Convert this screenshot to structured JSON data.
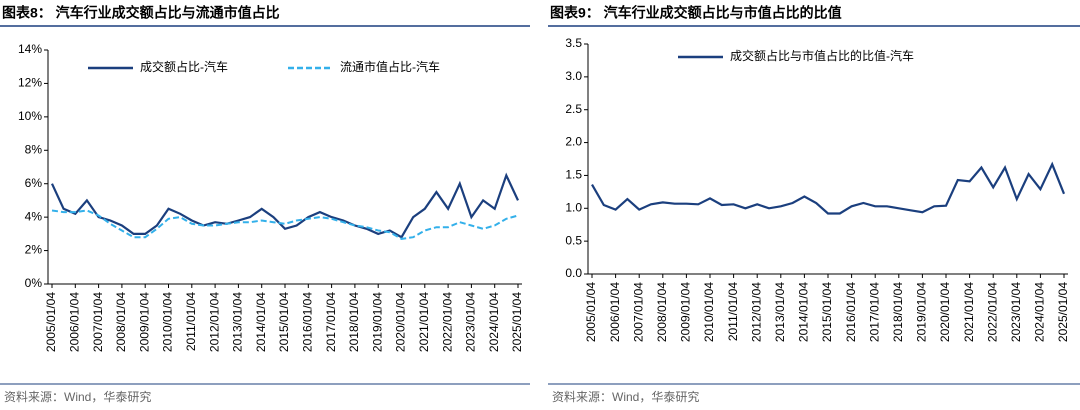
{
  "chart_data": [
    {
      "type": "line",
      "title": "图表8：  汽车行业成交额占比与流通市值占比",
      "source": "资料来源：Wind，华泰研究",
      "categories": [
        "2005/01/04",
        null,
        "2006/01/04",
        null,
        "2007/01/04",
        null,
        "2008/01/04",
        null,
        "2009/01/04",
        null,
        "2010/01/04",
        null,
        "2011/01/04",
        null,
        "2012/01/04",
        null,
        "2013/01/04",
        null,
        "2014/01/04",
        null,
        "2015/01/04",
        null,
        "2016/01/04",
        null,
        "2017/01/04",
        null,
        "2018/01/04",
        null,
        "2019/01/04",
        null,
        "2020/01/04",
        null,
        "2021/01/04",
        null,
        "2022/01/04",
        null,
        "2023/01/04",
        null,
        "2024/01/04",
        null,
        "2025/01/04"
      ],
      "series": [
        {
          "name": "成交额占比-汽车",
          "color": "#1b3f7e",
          "dashed": false,
          "values": [
            6.0,
            4.5,
            4.2,
            5.0,
            4.0,
            3.8,
            3.5,
            3.0,
            3.0,
            3.5,
            4.5,
            4.2,
            3.8,
            3.5,
            3.7,
            3.6,
            3.8,
            4.0,
            4.5,
            4.0,
            3.3,
            3.5,
            4.0,
            4.3,
            4.0,
            3.8,
            3.5,
            3.3,
            3.0,
            3.2,
            2.8,
            4.0,
            4.5,
            5.5,
            4.5,
            6.0,
            4.0,
            5.0,
            4.5,
            6.5,
            5.0
          ]
        },
        {
          "name": "流通市值占比-汽车",
          "color": "#33b0ea",
          "dashed": true,
          "values": [
            4.4,
            4.3,
            4.3,
            4.4,
            4.1,
            3.6,
            3.2,
            2.8,
            2.8,
            3.3,
            3.9,
            4.0,
            3.6,
            3.5,
            3.5,
            3.6,
            3.7,
            3.7,
            3.8,
            3.7,
            3.6,
            3.8,
            3.9,
            4.0,
            3.9,
            3.7,
            3.5,
            3.4,
            3.2,
            3.1,
            2.7,
            2.8,
            3.2,
            3.4,
            3.4,
            3.7,
            3.5,
            3.3,
            3.5,
            3.9,
            4.1
          ]
        }
      ],
      "ylim": [
        0,
        14
      ],
      "yticks": [
        {
          "value": 0,
          "label": "0%"
        },
        {
          "value": 2,
          "label": "2%"
        },
        {
          "value": 4,
          "label": "4%"
        },
        {
          "value": 6,
          "label": "6%"
        },
        {
          "value": 8,
          "label": "8%"
        },
        {
          "value": 10,
          "label": "10%"
        },
        {
          "value": 12,
          "label": "12%"
        },
        {
          "value": 14,
          "label": "14%"
        }
      ],
      "grid": false,
      "legend": "top"
    },
    {
      "type": "line",
      "title": "图表9：  汽车行业成交额占比与市值占比的比值",
      "source": "资料来源：Wind，华泰研究",
      "categories": [
        "2005/01/04",
        null,
        "2006/01/04",
        null,
        "2007/01/04",
        null,
        "2008/01/04",
        null,
        "2009/01/04",
        null,
        "2010/01/04",
        null,
        "2011/01/04",
        null,
        "2012/01/04",
        null,
        "2013/01/04",
        null,
        "2014/01/04",
        null,
        "2015/01/04",
        null,
        "2016/01/04",
        null,
        "2017/01/04",
        null,
        "2018/01/04",
        null,
        "2019/01/04",
        null,
        "2020/01/04",
        null,
        "2021/01/04",
        null,
        "2022/01/04",
        null,
        "2023/01/04",
        null,
        "2024/01/04",
        null,
        "2025/01/04"
      ],
      "series": [
        {
          "name": "成交额占比与市值占比的比值-汽车",
          "color": "#1b3f7e",
          "dashed": false,
          "values": [
            1.36,
            1.05,
            0.98,
            1.14,
            0.98,
            1.06,
            1.09,
            1.07,
            1.07,
            1.06,
            1.15,
            1.05,
            1.06,
            1.0,
            1.06,
            1.0,
            1.03,
            1.08,
            1.18,
            1.08,
            0.92,
            0.92,
            1.03,
            1.08,
            1.03,
            1.03,
            1.0,
            0.97,
            0.94,
            1.03,
            1.04,
            1.43,
            1.41,
            1.62,
            1.32,
            1.62,
            1.14,
            1.52,
            1.29,
            1.67,
            1.22
          ]
        }
      ],
      "ylim": [
        0,
        3.5
      ],
      "yticks": [
        {
          "value": 0,
          "label": "0.0"
        },
        0.5,
        {
          "value": 1,
          "label": "1.0"
        },
        1.5,
        {
          "value": 2,
          "label": "2.0"
        },
        2.5,
        {
          "value": 3,
          "label": "3.0"
        },
        3.5
      ],
      "grid": false,
      "legend": "top-left"
    }
  ]
}
